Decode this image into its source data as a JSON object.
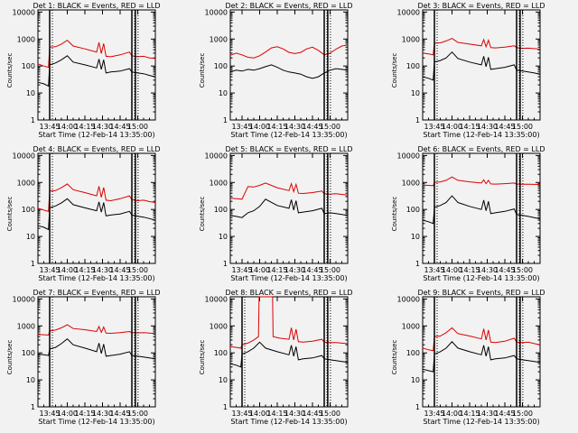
{
  "chart_data": {
    "type": "line",
    "figure_title": "Detector count rates",
    "xlabel": "Start Time (12-Feb-14 13:35:00)",
    "ylabel": "Counts/sec",
    "xlim_minutes_after_start": [
      0,
      100
    ],
    "ylim": [
      1,
      12000
    ],
    "yscale": "log",
    "x_ticks": [
      {
        "minute": 10,
        "label": "13:45"
      },
      {
        "minute": 25,
        "label": "14:00"
      },
      {
        "minute": 40,
        "label": "14:15"
      },
      {
        "minute": 55,
        "label": "14:30"
      },
      {
        "minute": 70,
        "label": "14:45"
      },
      {
        "minute": 85,
        "label": "15:00"
      }
    ],
    "y_ticks": [
      {
        "value": 1,
        "label": "1"
      },
      {
        "value": 10,
        "label": "10"
      },
      {
        "value": 100,
        "label": "100"
      },
      {
        "value": 1000,
        "label": "1000"
      },
      {
        "value": 10000,
        "label": "10000"
      }
    ],
    "series_colors": {
      "Events": "#000000",
      "LLD": "#dd0000"
    },
    "panels": [
      {
        "title": "Det 1: BLACK = Events, RED = LLD",
        "markers": [
          10,
          80,
          83
        ],
        "series": [
          {
            "name": "Events",
            "x": [
              0,
              5,
              9,
              10,
              15,
              20,
              25,
              30,
              40,
              50,
              52,
              54,
              56,
              58,
              62,
              70,
              78,
              80,
              85,
              90,
              95,
              100
            ],
            "y": [
              25,
              22,
              18,
              110,
              130,
              170,
              240,
              140,
              110,
              85,
              180,
              75,
              170,
              55,
              60,
              65,
              80,
              60,
              55,
              52,
              45,
              40
            ]
          },
          {
            "name": "LLD",
            "x": [
              0,
              5,
              9,
              10,
              15,
              20,
              25,
              30,
              40,
              50,
              52,
              54,
              56,
              58,
              62,
              70,
              78,
              80,
              85,
              90,
              95,
              100
            ],
            "y": [
              120,
              100,
              90,
              500,
              520,
              650,
              900,
              550,
              430,
              330,
              750,
              290,
              680,
              230,
              220,
              260,
              330,
              240,
              220,
              230,
              200,
              190
            ]
          }
        ]
      },
      {
        "title": "Det 2: BLACK = Events, RED = LLD",
        "markers": [
          80,
          83
        ],
        "series": [
          {
            "name": "Events",
            "x": [
              0,
              5,
              10,
              15,
              20,
              25,
              30,
              35,
              40,
              45,
              50,
              55,
              60,
              65,
              70,
              75,
              80,
              85,
              90,
              95,
              100
            ],
            "y": [
              60,
              70,
              65,
              75,
              70,
              80,
              95,
              110,
              90,
              70,
              60,
              55,
              50,
              40,
              35,
              40,
              55,
              70,
              80,
              75,
              70
            ]
          },
          {
            "name": "LLD",
            "x": [
              0,
              5,
              10,
              15,
              20,
              25,
              30,
              35,
              40,
              45,
              50,
              55,
              60,
              65,
              70,
              75,
              80,
              85,
              90,
              95,
              100
            ],
            "y": [
              250,
              300,
              260,
              210,
              200,
              240,
              330,
              470,
              520,
              430,
              320,
              290,
              320,
              430,
              500,
              380,
              260,
              300,
              420,
              550,
              600
            ]
          }
        ]
      },
      {
        "title": "Det 3: BLACK = Events, RED = LLD",
        "markers": [
          10,
          80,
          83
        ],
        "series": [
          {
            "name": "Events",
            "x": [
              0,
              5,
              9,
              10,
              15,
              20,
              25,
              30,
              40,
              50,
              52,
              54,
              56,
              58,
              62,
              70,
              78,
              80,
              85,
              90,
              95,
              100
            ],
            "y": [
              40,
              35,
              30,
              140,
              160,
              200,
              330,
              190,
              140,
              110,
              230,
              95,
              210,
              75,
              80,
              90,
              110,
              70,
              65,
              60,
              55,
              50
            ]
          },
          {
            "name": "LLD",
            "x": [
              0,
              5,
              9,
              10,
              15,
              20,
              25,
              30,
              40,
              50,
              52,
              54,
              56,
              58,
              62,
              70,
              78,
              80,
              85,
              90,
              95,
              100
            ],
            "y": [
              300,
              280,
              260,
              700,
              720,
              850,
              1050,
              750,
              650,
              560,
              950,
              520,
              900,
              480,
              470,
              500,
              560,
              480,
              450,
              460,
              440,
              420
            ]
          }
        ]
      },
      {
        "title": "Det 4: BLACK = Events, RED = LLD",
        "markers": [
          10,
          80,
          83
        ],
        "series": [
          {
            "name": "Events",
            "x": [
              0,
              5,
              9,
              10,
              15,
              20,
              25,
              30,
              40,
              50,
              52,
              54,
              56,
              58,
              62,
              70,
              78,
              80,
              85,
              90,
              95,
              100
            ],
            "y": [
              25,
              22,
              18,
              115,
              135,
              175,
              250,
              150,
              115,
              90,
              190,
              80,
              180,
              58,
              62,
              68,
              85,
              62,
              56,
              52,
              46,
              40
            ]
          },
          {
            "name": "LLD",
            "x": [
              0,
              5,
              9,
              10,
              15,
              20,
              25,
              30,
              40,
              50,
              52,
              54,
              56,
              58,
              62,
              70,
              78,
              80,
              85,
              90,
              95,
              100
            ],
            "y": [
              110,
              95,
              85,
              480,
              500,
              640,
              880,
              540,
              420,
              320,
              720,
              280,
              650,
              220,
              210,
              250,
              320,
              230,
              210,
              220,
              195,
              180
            ]
          }
        ]
      },
      {
        "title": "Det 5: BLACK = Events, RED = LLD",
        "markers": [
          80,
          83
        ],
        "series": [
          {
            "name": "Events",
            "x": [
              0,
              5,
              10,
              15,
              20,
              25,
              30,
              40,
              50,
              52,
              54,
              56,
              58,
              62,
              70,
              78,
              80,
              85,
              90,
              95,
              100
            ],
            "y": [
              60,
              55,
              50,
              75,
              90,
              130,
              240,
              140,
              110,
              230,
              95,
              210,
              75,
              80,
              90,
              110,
              70,
              75,
              70,
              65,
              60
            ]
          },
          {
            "name": "LLD",
            "x": [
              0,
              5,
              10,
              15,
              20,
              25,
              30,
              40,
              50,
              52,
              54,
              56,
              58,
              62,
              70,
              78,
              80,
              85,
              90,
              95,
              100
            ],
            "y": [
              260,
              250,
              240,
              700,
              680,
              780,
              950,
              640,
              500,
              900,
              460,
              850,
              400,
              390,
              420,
              480,
              380,
              370,
              380,
              360,
              340
            ]
          }
        ]
      },
      {
        "title": "Det 6: BLACK = Events, RED = LLD",
        "markers": [
          10,
          80,
          83
        ],
        "series": [
          {
            "name": "Events",
            "x": [
              0,
              5,
              9,
              10,
              15,
              20,
              25,
              30,
              40,
              50,
              52,
              54,
              56,
              58,
              62,
              70,
              78,
              80,
              85,
              90,
              95,
              100
            ],
            "y": [
              40,
              35,
              30,
              120,
              140,
              180,
              320,
              180,
              130,
              100,
              220,
              90,
              200,
              70,
              75,
              85,
              105,
              65,
              60,
              55,
              50,
              45
            ]
          },
          {
            "name": "LLD",
            "x": [
              0,
              5,
              9,
              10,
              15,
              20,
              25,
              30,
              40,
              50,
              52,
              54,
              56,
              58,
              62,
              70,
              78,
              80,
              85,
              90,
              95,
              100
            ],
            "y": [
              800,
              780,
              760,
              1000,
              1050,
              1200,
              1600,
              1200,
              1050,
              950,
              1250,
              900,
              1200,
              880,
              870,
              900,
              950,
              870,
              860,
              860,
              850,
              840
            ]
          }
        ]
      },
      {
        "title": "Det 7: BLACK = Events, RED = LLD",
        "markers": [
          10,
          80,
          83
        ],
        "series": [
          {
            "name": "Events",
            "x": [
              0,
              5,
              9,
              10,
              15,
              20,
              25,
              30,
              40,
              50,
              52,
              54,
              56,
              58,
              62,
              70,
              78,
              80,
              85,
              90,
              95,
              100
            ],
            "y": [
              90,
              85,
              80,
              140,
              160,
              220,
              330,
              200,
              150,
              110,
              230,
              95,
              210,
              75,
              80,
              90,
              110,
              80,
              75,
              70,
              65,
              60
            ]
          },
          {
            "name": "LLD",
            "x": [
              0,
              5,
              9,
              10,
              15,
              20,
              25,
              30,
              40,
              50,
              52,
              54,
              56,
              58,
              62,
              70,
              78,
              80,
              85,
              90,
              95,
              100
            ],
            "y": [
              480,
              470,
              460,
              650,
              700,
              850,
              1100,
              800,
              720,
              620,
              950,
              580,
              900,
              540,
              530,
              560,
              620,
              560,
              550,
              560,
              540,
              520
            ]
          }
        ]
      },
      {
        "title": "Det 8: BLACK = Events, RED = LLD",
        "markers": [
          10,
          80,
          83
        ],
        "series": [
          {
            "name": "Events",
            "x": [
              0,
              5,
              9,
              10,
              15,
              20,
              25,
              30,
              40,
              50,
              52,
              54,
              56,
              58,
              62,
              70,
              78,
              80,
              85,
              90,
              95,
              100
            ],
            "y": [
              40,
              35,
              30,
              90,
              110,
              150,
              250,
              150,
              110,
              85,
              190,
              75,
              170,
              55,
              60,
              65,
              80,
              60,
              55,
              52,
              48,
              45
            ]
          },
          {
            "name": "LLD",
            "x": [
              0,
              5,
              9,
              10,
              15,
              20,
              24,
              24.5,
              30,
              36,
              36.5,
              42,
              50,
              52,
              54,
              56,
              58,
              62,
              70,
              78,
              80,
              85,
              90,
              95,
              100
            ],
            "y": [
              170,
              160,
              150,
              200,
              230,
              300,
              400,
              12000,
              12000,
              12000,
              400,
              350,
              320,
              850,
              300,
              750,
              260,
              250,
              270,
              320,
              250,
              240,
              240,
              230,
              220
            ]
          }
        ]
      },
      {
        "title": "Det 9: BLACK = Events, RED = LLD",
        "markers": [
          10,
          80,
          83
        ],
        "series": [
          {
            "name": "Events",
            "x": [
              0,
              5,
              9,
              10,
              15,
              20,
              25,
              30,
              40,
              50,
              52,
              54,
              56,
              58,
              62,
              70,
              78,
              80,
              85,
              90,
              95,
              100
            ],
            "y": [
              25,
              22,
              20,
              90,
              110,
              150,
              260,
              150,
              110,
              85,
              190,
              75,
              170,
              55,
              60,
              65,
              80,
              60,
              55,
              52,
              48,
              45
            ]
          },
          {
            "name": "LLD",
            "x": [
              0,
              5,
              9,
              10,
              15,
              20,
              25,
              30,
              40,
              50,
              52,
              54,
              56,
              58,
              62,
              70,
              78,
              80,
              85,
              90,
              95,
              100
            ],
            "y": [
              150,
              130,
              120,
              400,
              420,
              560,
              850,
              520,
              420,
              330,
              780,
              300,
              700,
              250,
              240,
              270,
              350,
              250,
              240,
              250,
              220,
              200
            ]
          }
        ]
      }
    ]
  }
}
